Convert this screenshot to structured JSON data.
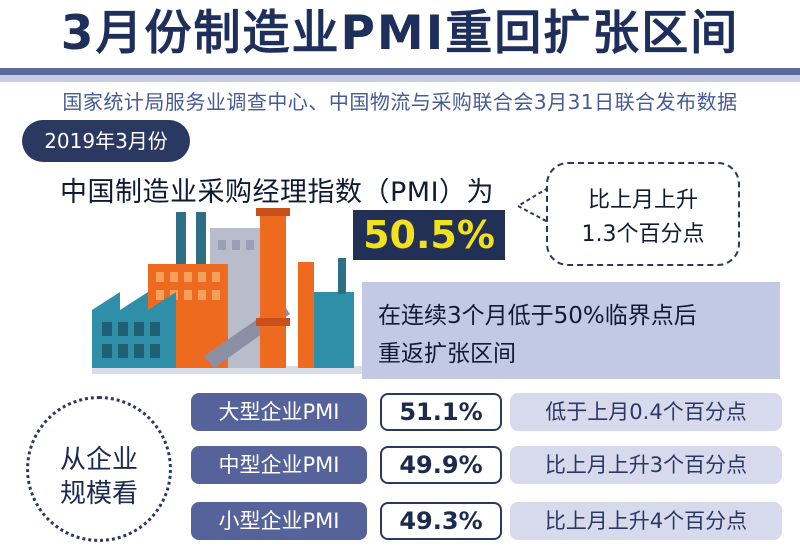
{
  "headline": "3月份制造业PMI重回扩张区间",
  "source": "国家统计局服务业调查中心、中国物流与采购联合会3月31日联合发布数据",
  "period": "2019年3月份",
  "pmi": {
    "label": "中国制造业采购经理指数（PMI）为",
    "value": "50.5%",
    "change_line1": "比上月上升",
    "change_line2": "1.3个百分点"
  },
  "critical": {
    "line1": "在连续3个月低于50%临界点后",
    "line2": "重返扩张区间"
  },
  "scale_circle": {
    "line1": "从企业",
    "line2": "规模看"
  },
  "enterprise_rows": [
    {
      "label": "大型企业PMI",
      "value": "51.1%",
      "change": "低于上月0.4个百分点"
    },
    {
      "label": "中型企业PMI",
      "value": "49.9%",
      "change": "比上月上升3个百分点"
    },
    {
      "label": "小型企业PMI",
      "value": "49.3%",
      "change": "比上月上升4个百分点"
    }
  ],
  "colors": {
    "navy": "#2b3862",
    "highlight_yellow": "#f2e21b",
    "orange": "#ee6a1f",
    "teal": "#2f8fa8"
  }
}
